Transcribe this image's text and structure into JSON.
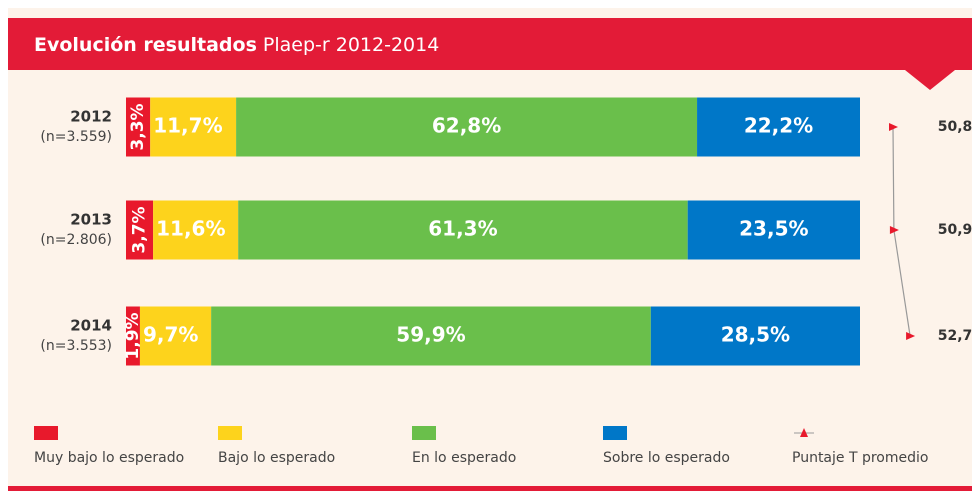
{
  "chart_data": {
    "type": "bar",
    "stacked": true,
    "orientation": "horizontal",
    "title": "Evolución resultados",
    "subtitle": "Plaep-r 2012-2014",
    "categories": [
      "2012",
      "2013",
      "2014"
    ],
    "category_notes": [
      "(n=3.559)",
      "(n=2.806)",
      "(n=3.553)"
    ],
    "series": [
      {
        "name": "Muy bajo lo esperado",
        "color": "#e8192c",
        "values": [
          3.3,
          3.7,
          1.9
        ],
        "value_labels": [
          "3,3%",
          "3,7%",
          "1,9%"
        ]
      },
      {
        "name": "Bajo lo esperado",
        "color": "#fdd31c",
        "values": [
          11.7,
          11.6,
          9.7
        ],
        "value_labels": [
          "11,7%",
          "11,6%",
          "9,7%"
        ]
      },
      {
        "name": "En lo esperado",
        "color": "#6abf4b",
        "values": [
          62.8,
          61.3,
          59.9
        ],
        "value_labels": [
          "62,8%",
          "61,3%",
          "59,9%"
        ]
      },
      {
        "name": "Sobre lo esperado",
        "color": "#0077c8",
        "values": [
          22.2,
          23.5,
          28.5
        ],
        "value_labels": [
          "22,2%",
          "23,5%",
          "28,5%"
        ]
      },
      {
        "name": "Puntaje T promedio",
        "type": "line",
        "color": "#e8192c",
        "values": [
          50.8,
          50.9,
          52.7
        ],
        "value_labels": [
          "50,8",
          "50,9",
          "52,7"
        ]
      }
    ]
  }
}
